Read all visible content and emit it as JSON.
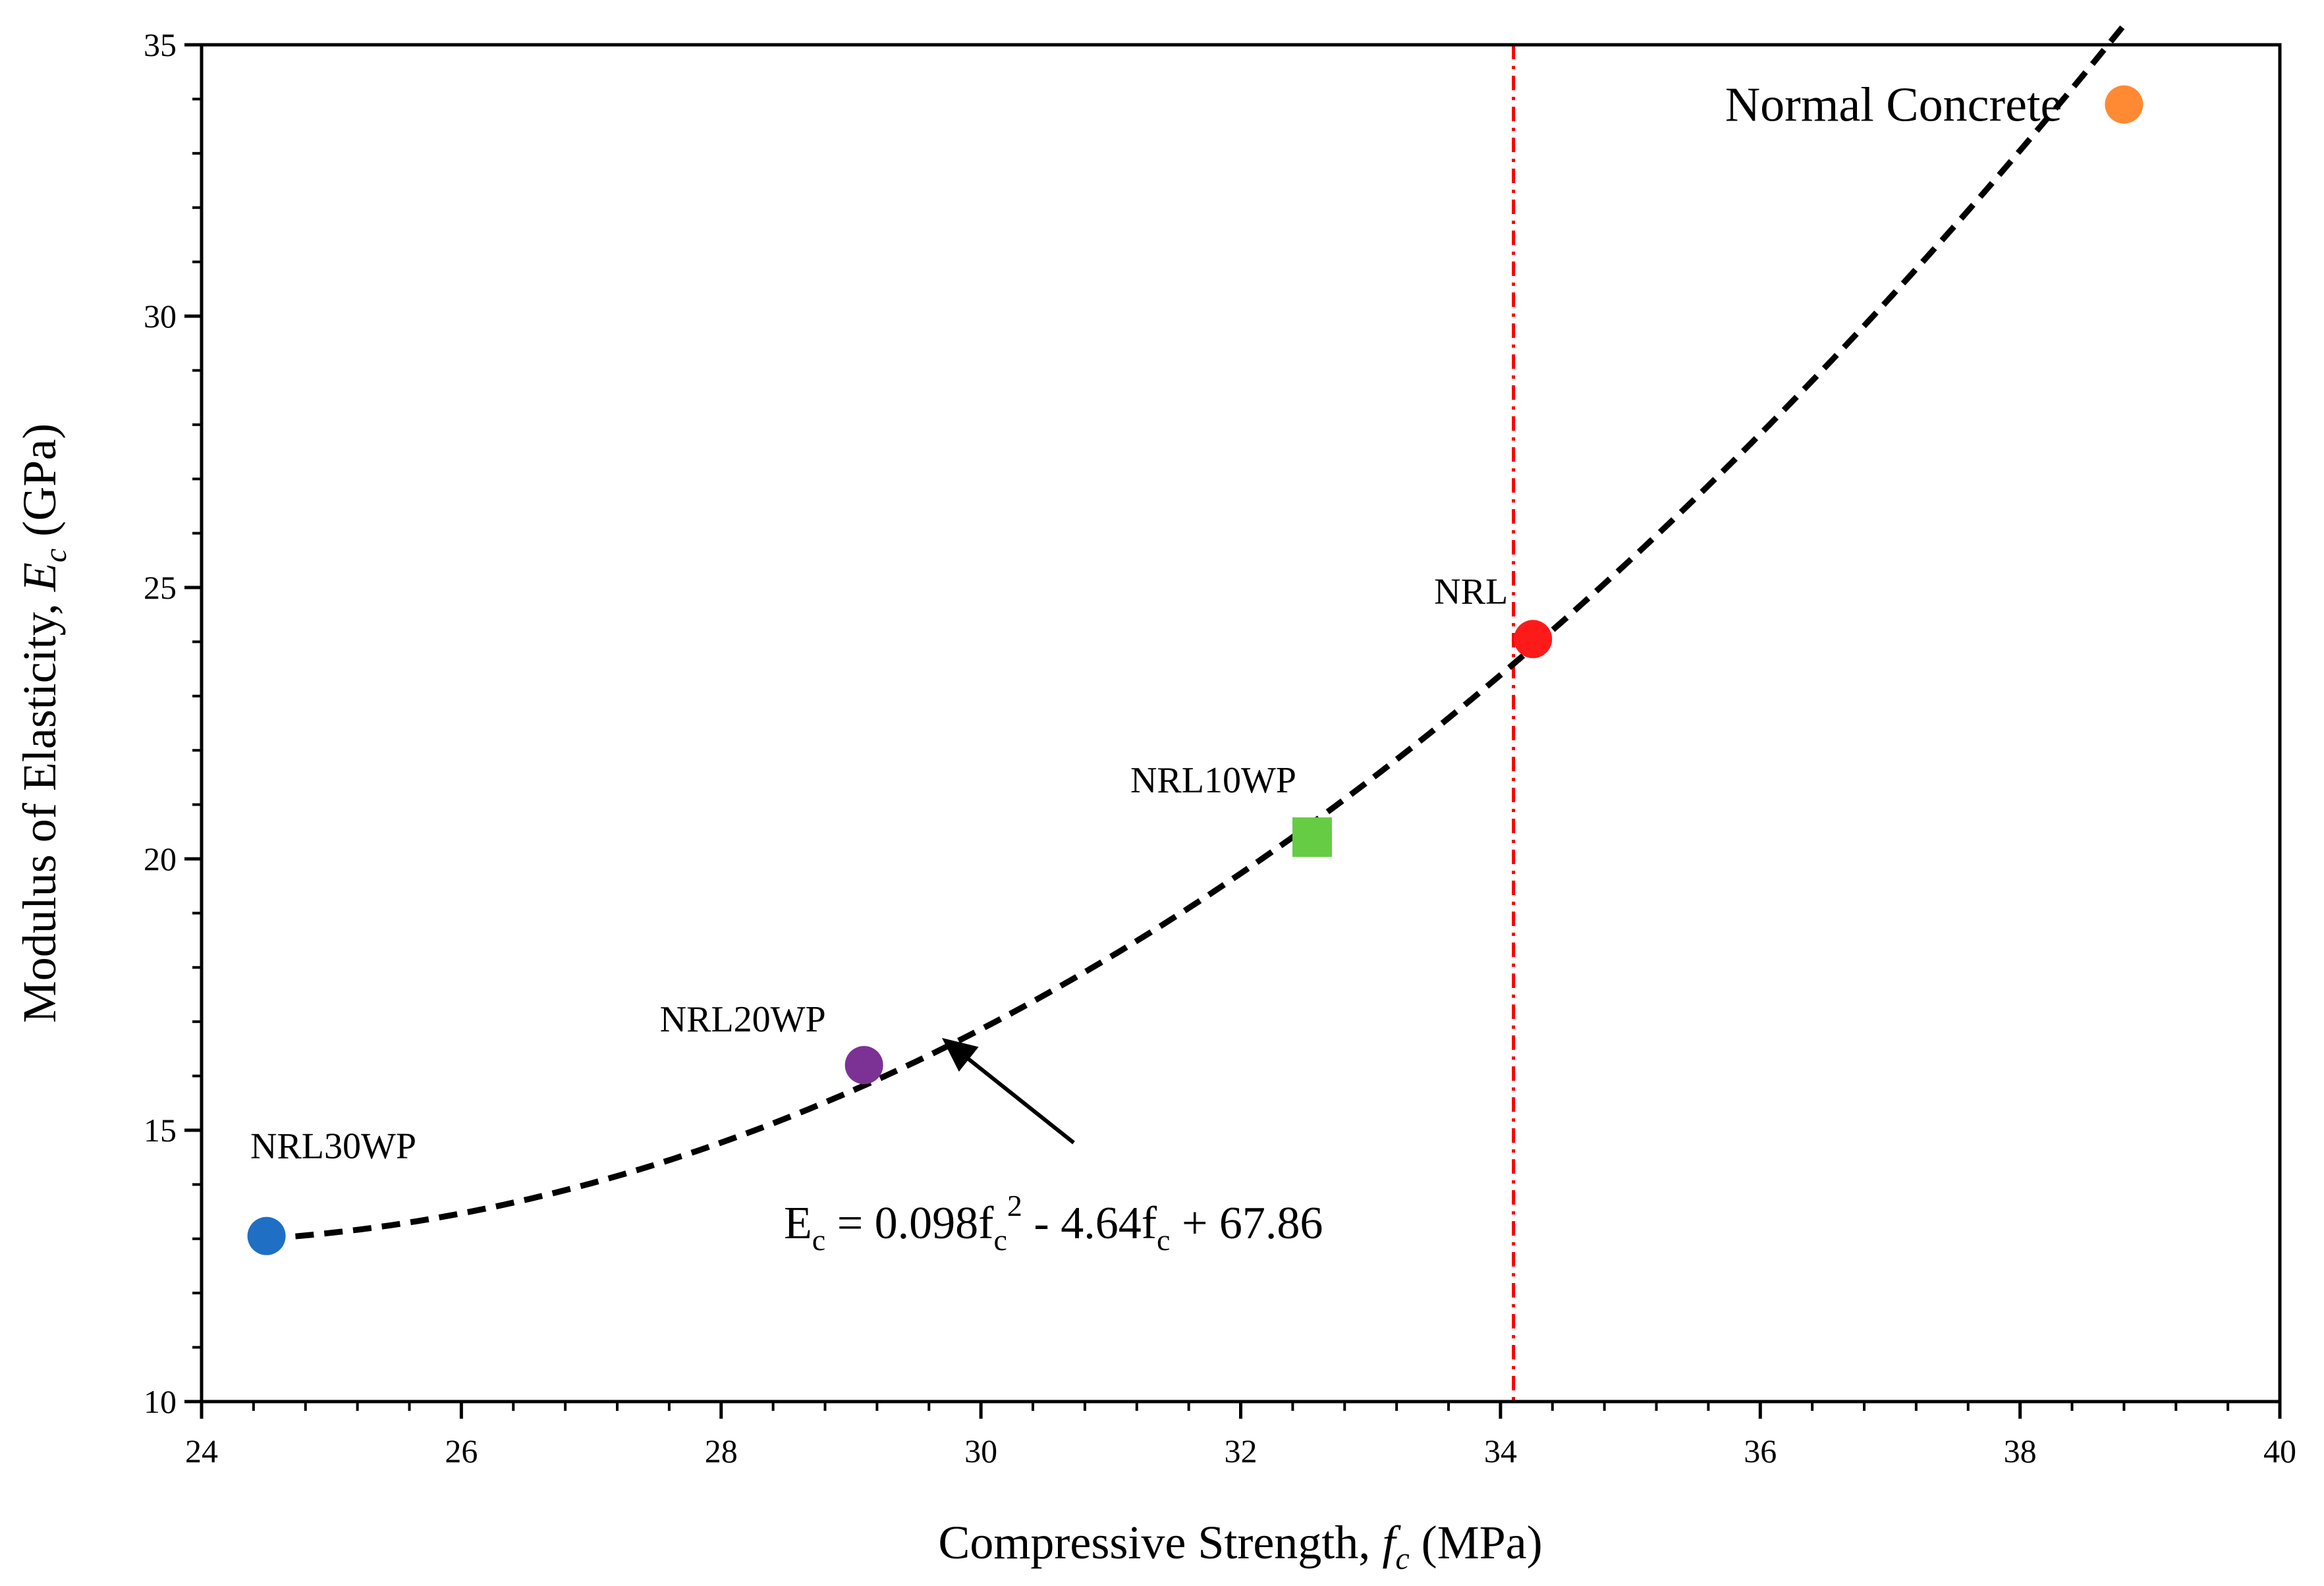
{
  "chart_data": {
    "type": "scatter",
    "title": "",
    "xlabel": {
      "prefix": "Compressive Strength, ",
      "symbol": "f",
      "sub": "c",
      "suffix": " (MPa)"
    },
    "ylabel": {
      "prefix": "Modulus of Elasticity, ",
      "symbol": "E",
      "sub": "c",
      "suffix": " (GPa)"
    },
    "xlim": [
      24,
      40
    ],
    "ylim": [
      10,
      35
    ],
    "x_ticks": [
      24,
      26,
      28,
      30,
      32,
      34,
      36,
      38,
      40
    ],
    "y_ticks": [
      10,
      15,
      20,
      25,
      30,
      35
    ],
    "points": [
      {
        "name": "NRL30WP",
        "x": 24.5,
        "y": 13.05,
        "color": "#1f6fc5",
        "marker": "circle"
      },
      {
        "name": "NRL20WP",
        "x": 29.1,
        "y": 16.2,
        "color": "#7b3294",
        "marker": "circle"
      },
      {
        "name": "NRL10WP",
        "x": 32.55,
        "y": 20.4,
        "color": "#66cc44",
        "marker": "square"
      },
      {
        "name": "NRL",
        "x": 34.25,
        "y": 24.05,
        "color": "#ff1a1a",
        "marker": "circle"
      },
      {
        "name": "Normal Concrete",
        "x": 38.8,
        "y": 33.9,
        "color": "#ff8a33",
        "marker": "circle"
      }
    ],
    "trendline": {
      "type": "polynomial",
      "coefficients": [
        0.098,
        -4.64,
        67.86
      ],
      "x_range": [
        24.5,
        38.8
      ],
      "style": "dashed",
      "color": "#000000",
      "equation": {
        "lead": "E",
        "lead_sub": "c",
        "eq1": " = 0.098f",
        "sub1": "c",
        "sup1": "2",
        "eq2": " - 4.64f",
        "sub2": "c",
        "eq3": " + 67.86"
      }
    },
    "reference_line": {
      "x": 34.1,
      "color": "#ff0000",
      "style": "dash-dot"
    },
    "arrow_target": {
      "x": 29.7,
      "y": 16.7
    }
  }
}
